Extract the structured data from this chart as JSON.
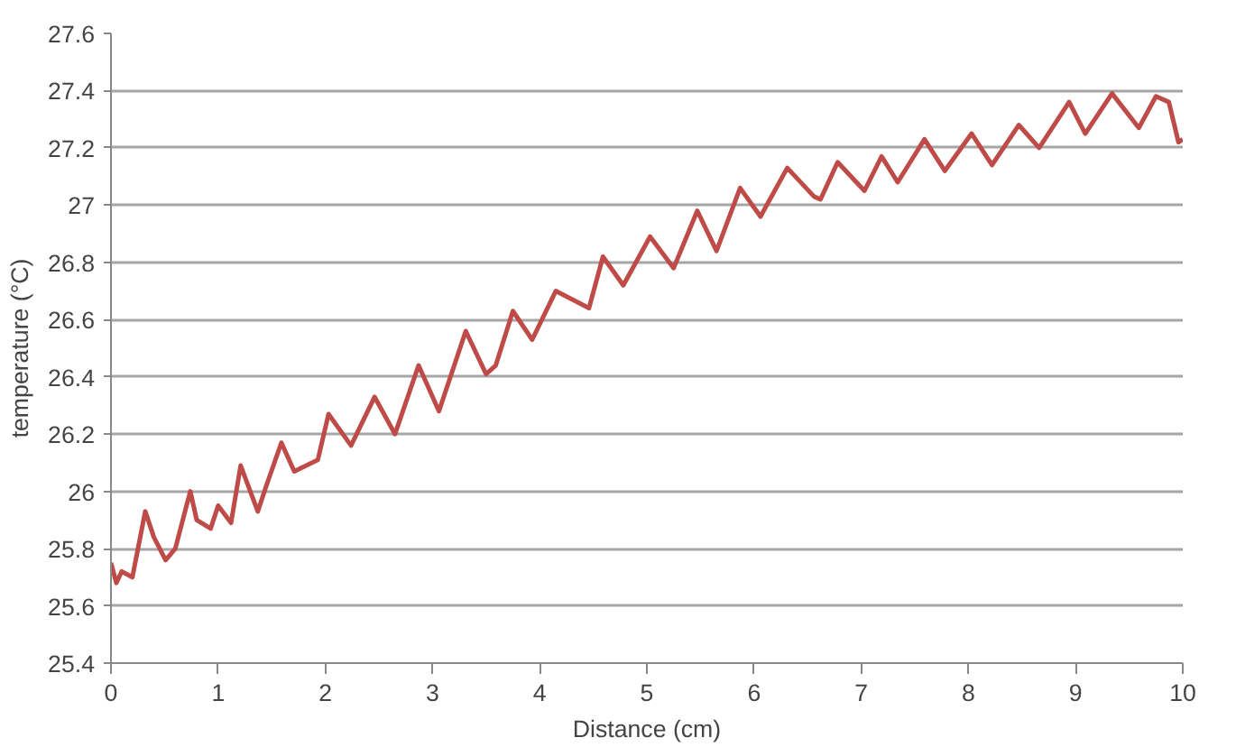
{
  "chart_data": {
    "type": "line",
    "xlabel": "Distance (cm)",
    "ylabel": "temperature (°C)",
    "xlim": [
      0,
      10
    ],
    "xticks": [
      0,
      1,
      2,
      3,
      4,
      5,
      6,
      7,
      8,
      9,
      10
    ],
    "ylim": [
      25.4,
      27.6
    ],
    "yticks": [
      25.4,
      25.6,
      25.8,
      26,
      26.2,
      26.4,
      26.6,
      26.8,
      27,
      27.2,
      27.4,
      27.6
    ],
    "grid": "y",
    "marker": "none",
    "line_style": "solid",
    "series": [
      {
        "color": "#be4b48",
        "x": [
          0,
          0.05,
          0.1,
          0.2,
          0.32,
          0.4,
          0.51,
          0.6,
          0.74,
          0.8,
          0.93,
          1.0,
          1.12,
          1.21,
          1.37,
          1.45,
          1.59,
          1.71,
          1.93,
          2.03,
          2.24,
          2.46,
          2.65,
          2.87,
          3.06,
          3.31,
          3.5,
          3.59,
          3.75,
          3.93,
          4.15,
          4.46,
          4.59,
          4.78,
          5.03,
          5.25,
          5.47,
          5.65,
          5.87,
          6.06,
          6.31,
          6.56,
          6.62,
          6.78,
          7.03,
          7.19,
          7.34,
          7.59,
          7.78,
          8.03,
          8.22,
          8.47,
          8.66,
          8.94,
          9.09,
          9.34,
          9.59,
          9.75,
          9.87,
          9.96,
          10
        ],
        "values": [
          25.75,
          25.68,
          25.72,
          25.7,
          25.93,
          25.84,
          25.76,
          25.8,
          26.0,
          25.9,
          25.87,
          25.95,
          25.89,
          26.09,
          25.93,
          26.02,
          26.17,
          26.07,
          26.11,
          26.27,
          26.16,
          26.33,
          26.2,
          26.44,
          26.28,
          26.56,
          26.41,
          26.44,
          26.63,
          26.53,
          26.7,
          26.64,
          26.82,
          26.72,
          26.89,
          26.78,
          26.98,
          26.84,
          27.06,
          26.96,
          27.13,
          27.03,
          27.02,
          27.15,
          27.05,
          27.17,
          27.08,
          27.23,
          27.12,
          27.25,
          27.14,
          27.28,
          27.2,
          27.36,
          27.25,
          27.39,
          27.27,
          27.38,
          27.36,
          27.22,
          27.23
        ]
      }
    ]
  }
}
